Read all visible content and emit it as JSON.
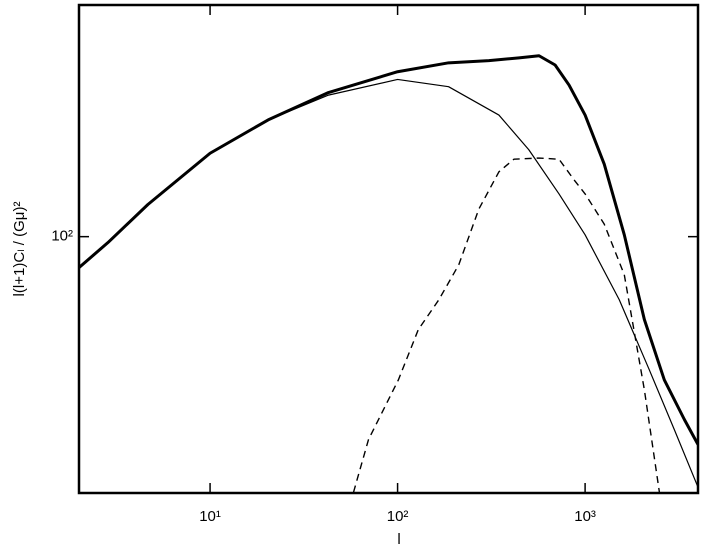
{
  "chart_data": {
    "type": "line",
    "x_label": "l",
    "y_label": "l(l+1)Cₗ / (Gμ)²",
    "log_x": true,
    "log_y": true,
    "xlim": [
      2,
      4000
    ],
    "ylim": [
      25,
      350
    ],
    "xticks": [
      {
        "value": 10,
        "label": "10¹"
      },
      {
        "value": 100,
        "label": "10²"
      },
      {
        "value": 1000,
        "label": "10³"
      }
    ],
    "yticks": [
      {
        "value": 100,
        "label": "10²"
      }
    ],
    "series": [
      {
        "color": "#000000",
        "line_width": 3,
        "dash": false,
        "x": [
          2,
          2.85,
          4.66,
          10,
          20.4,
          42.8,
          100,
          187,
          307,
          444,
          568,
          692,
          821,
          1000,
          1265,
          1618,
          2070,
          2644,
          3383,
          4000
        ],
        "values": [
          84.6,
          96.8,
          119,
          157,
          188,
          218,
          244,
          256,
          259,
          263,
          266,
          253,
          227,
          193,
          148,
          101,
          63.9,
          46.1,
          37.2,
          32.5
        ]
      },
      {
        "color": "#000000",
        "line_width": 1.2,
        "dash": false,
        "x": [
          2,
          2.85,
          4.66,
          10,
          20.4,
          42.8,
          100,
          187,
          347,
          501,
          726,
          1000,
          1521,
          2198,
          2993,
          4000
        ],
        "values": [
          84.6,
          96.8,
          119,
          157,
          188,
          215,
          234,
          225,
          193,
          160,
          126,
          101,
          71.1,
          48.7,
          35.2,
          25.8
        ]
      },
      {
        "color": "#000000",
        "line_width": 1.4,
        "dash": true,
        "x": [
          58.2,
          70,
          101,
          129,
          166,
          212,
          271,
          347,
          417,
          568,
          726,
          873,
          1000,
          1265,
          1618,
          2070,
          2490
        ],
        "values": [
          25.1,
          33.4,
          46.1,
          60.5,
          71.1,
          85.9,
          116,
          142,
          152,
          153,
          152,
          136,
          126,
          107,
          81.4,
          43.7,
          25.1
        ]
      }
    ]
  }
}
